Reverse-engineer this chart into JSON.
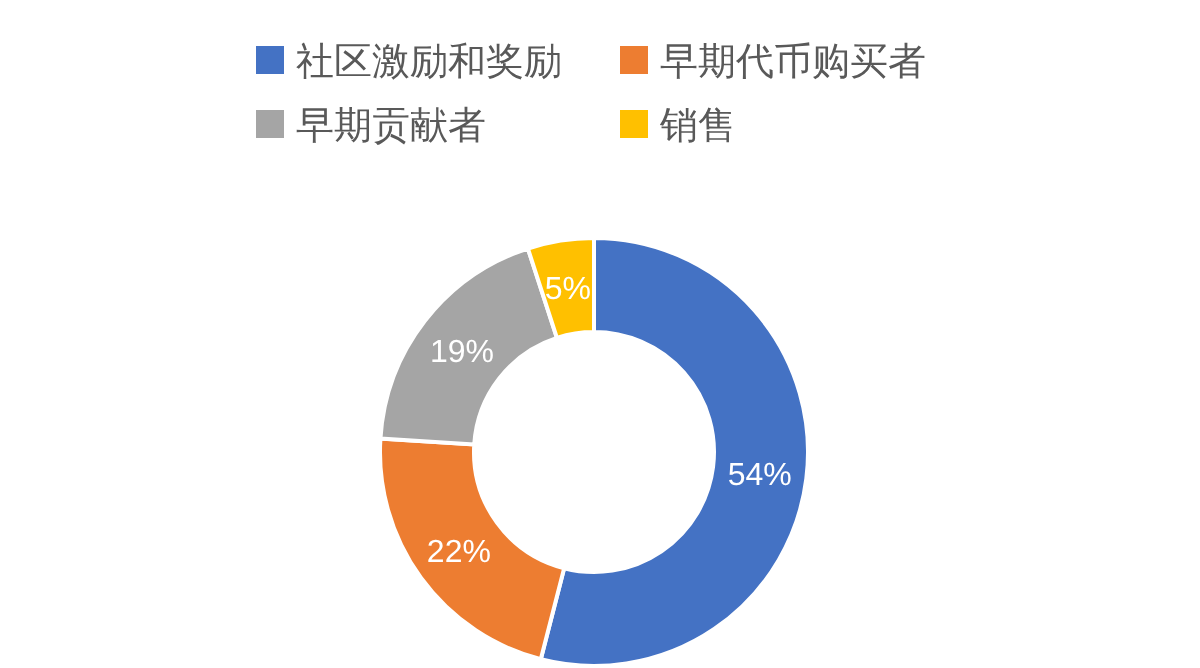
{
  "chart_data": {
    "type": "donut",
    "categories": [
      "社区激励和奖励",
      "早期代币购买者",
      "早期贡献者",
      "销售"
    ],
    "values": [
      54,
      22,
      19,
      5
    ],
    "colors": [
      "#4472c4",
      "#ed7d31",
      "#a5a5a5",
      "#ffc000"
    ],
    "value_labels": [
      "54%",
      "22%",
      "19%",
      "5%"
    ],
    "legend": "top"
  }
}
